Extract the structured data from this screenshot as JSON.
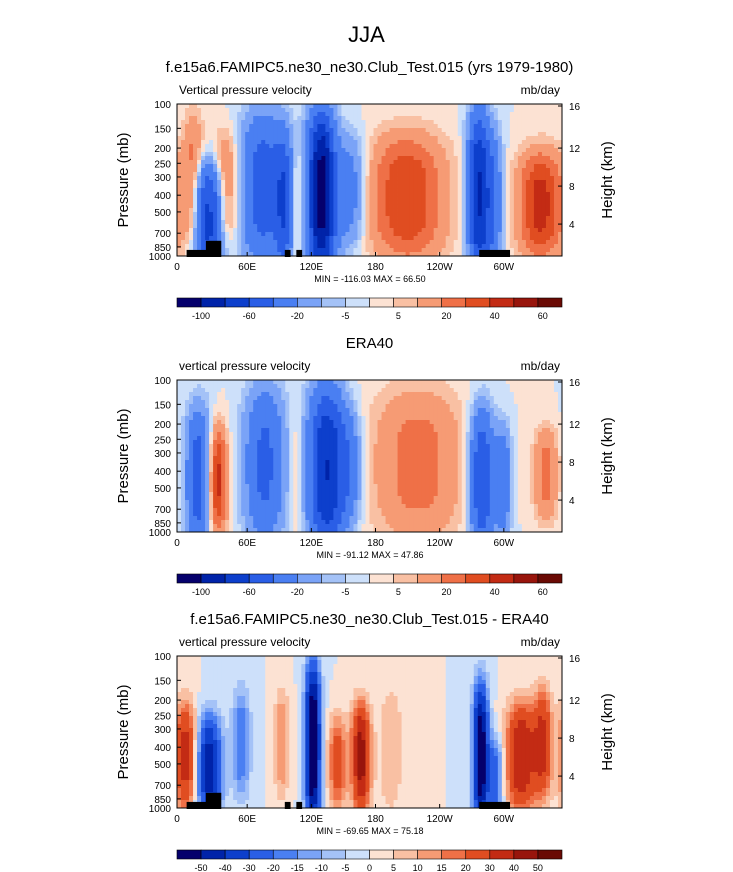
{
  "page": {
    "title": "JJA"
  },
  "scales": {
    "full": {
      "labels": [
        "-100",
        "-60",
        "-20",
        "-5",
        "5",
        "20",
        "40",
        "60"
      ],
      "colors": [
        "#05006c",
        "#0023a9",
        "#0d3fcc",
        "#2a5ee6",
        "#4a7ff2",
        "#7aa3f7",
        "#a4c2f7",
        "#cde0fa",
        "#fce2d3",
        "#f9c0a3",
        "#f69b74",
        "#ef7047",
        "#e04d21",
        "#c32b14",
        "#98150c",
        "#6a0a04"
      ]
    },
    "diff": {
      "labels": [
        "-50",
        "-40",
        "-30",
        "-20",
        "-15",
        "-10",
        "-5",
        "0",
        "5",
        "10",
        "15",
        "20",
        "30",
        "40",
        "50"
      ],
      "colors": [
        "#05006c",
        "#0023a9",
        "#0d3fcc",
        "#2a5ee6",
        "#4a7ff2",
        "#7aa3f7",
        "#a4c2f7",
        "#cde0fa",
        "#fce2d3",
        "#f9c0a3",
        "#f69b74",
        "#ef7047",
        "#e04d21",
        "#c32b14",
        "#98150c",
        "#6a0a04"
      ]
    }
  },
  "chart_data": [
    {
      "type": "heatmap",
      "title": "f.e15a6.FAMIPC5.ne30_ne30.Club_Test.015 (yrs 1979-1980)",
      "subtitle_left": "Vertical pressure velocity",
      "subtitle_right": "mb/day",
      "ylabel": "Pressure (mb)",
      "ylabel_right": "Height (km)",
      "x_ticks": [
        "0",
        "60E",
        "120E",
        "180",
        "120W",
        "60W"
      ],
      "y_ticks": [
        "100",
        "150",
        "200",
        "250",
        "300",
        "400",
        "500",
        "700",
        "850",
        "1000"
      ],
      "y_right_ticks": [
        "16",
        "12",
        "8",
        "4"
      ],
      "stats": "MIN = -116.03  MAX = 66.50",
      "scale": "full",
      "features": [
        {
          "lon": 30,
          "pmin": 300,
          "pmax": 1000,
          "w": 10,
          "amp": -70
        },
        {
          "lon": 15,
          "pmin": 150,
          "pmax": 700,
          "w": 7,
          "amp": 25
        },
        {
          "lon": 45,
          "pmin": 200,
          "pmax": 700,
          "w": 8,
          "amp": 30
        },
        {
          "lon": 80,
          "pmin": 150,
          "pmax": 850,
          "w": 14,
          "amp": -50
        },
        {
          "lon": 100,
          "pmin": 200,
          "pmax": 1000,
          "w": 6,
          "amp": -45
        },
        {
          "lon": 112,
          "pmin": 250,
          "pmax": 850,
          "w": 4,
          "amp": 15
        },
        {
          "lon": 135,
          "pmin": 150,
          "pmax": 1000,
          "w": 9,
          "amp": -110
        },
        {
          "lon": 162,
          "pmin": 200,
          "pmax": 700,
          "w": 10,
          "amp": -30
        },
        {
          "lon": 215,
          "pmin": 200,
          "pmax": 850,
          "w": 25,
          "amp": 40
        },
        {
          "lon": 282,
          "pmin": 150,
          "pmax": 1000,
          "w": 7,
          "amp": -80
        },
        {
          "lon": 296,
          "pmin": 200,
          "pmax": 1000,
          "w": 6,
          "amp": -35
        },
        {
          "lon": 340,
          "pmin": 250,
          "pmax": 850,
          "w": 15,
          "amp": 45
        }
      ]
    },
    {
      "type": "heatmap",
      "title": "ERA40",
      "subtitle_left": "vertical pressure velocity",
      "subtitle_right": "mb/day",
      "ylabel": "Pressure (mb)",
      "ylabel_right": "Height (km)",
      "x_ticks": [
        "0",
        "60E",
        "120E",
        "180",
        "120W",
        "60W"
      ],
      "y_ticks": [
        "100",
        "150",
        "200",
        "250",
        "300",
        "400",
        "500",
        "700",
        "850",
        "1000"
      ],
      "y_right_ticks": [
        "16",
        "12",
        "8",
        "4"
      ],
      "stats": "MIN = -91.12  MAX = 47.86",
      "scale": "full",
      "features": [
        {
          "lon": 20,
          "pmin": 200,
          "pmax": 1000,
          "w": 8,
          "amp": -50
        },
        {
          "lon": 38,
          "pmin": 250,
          "pmax": 850,
          "w": 6,
          "amp": 45
        },
        {
          "lon": 82,
          "pmin": 150,
          "pmax": 850,
          "w": 13,
          "amp": -45
        },
        {
          "lon": 112,
          "pmin": 200,
          "pmax": 850,
          "w": 5,
          "amp": 10
        },
        {
          "lon": 140,
          "pmin": 150,
          "pmax": 1000,
          "w": 12,
          "amp": -80
        },
        {
          "lon": 162,
          "pmin": 200,
          "pmax": 700,
          "w": 8,
          "amp": -25
        },
        {
          "lon": 225,
          "pmin": 150,
          "pmax": 850,
          "w": 30,
          "amp": 25
        },
        {
          "lon": 285,
          "pmin": 200,
          "pmax": 1000,
          "w": 8,
          "amp": -60
        },
        {
          "lon": 305,
          "pmin": 250,
          "pmax": 850,
          "w": 5,
          "amp": -35
        },
        {
          "lon": 345,
          "pmin": 250,
          "pmax": 700,
          "w": 8,
          "amp": 25
        }
      ]
    },
    {
      "type": "heatmap",
      "title": "f.e15a6.FAMIPC5.ne30_ne30.Club_Test.015 - ERA40",
      "subtitle_left": "vertical pressure velocity",
      "subtitle_right": "mb/day",
      "ylabel": "Pressure (mb)",
      "ylabel_right": "Height (km)",
      "x_ticks": [
        "0",
        "60E",
        "120E",
        "180",
        "120W",
        "60W"
      ],
      "y_ticks": [
        "100",
        "150",
        "200",
        "250",
        "300",
        "400",
        "500",
        "700",
        "850",
        "1000"
      ],
      "y_right_ticks": [
        "16",
        "12",
        "8",
        "4"
      ],
      "stats": "MIN = -69.65  MAX = 75.18",
      "scale": "diff",
      "features": [
        {
          "lon": 8,
          "pmin": 250,
          "pmax": 850,
          "w": 7,
          "amp": 35
        },
        {
          "lon": 30,
          "pmin": 300,
          "pmax": 1000,
          "w": 8,
          "amp": -45
        },
        {
          "lon": 60,
          "pmin": 200,
          "pmax": 700,
          "w": 6,
          "amp": -20
        },
        {
          "lon": 98,
          "pmin": 200,
          "pmax": 700,
          "w": 5,
          "amp": 15
        },
        {
          "lon": 127,
          "pmin": 150,
          "pmax": 1000,
          "w": 5,
          "amp": -65
        },
        {
          "lon": 150,
          "pmin": 300,
          "pmax": 850,
          "w": 6,
          "amp": 25
        },
        {
          "lon": 172,
          "pmin": 250,
          "pmax": 850,
          "w": 6,
          "amp": 45
        },
        {
          "lon": 200,
          "pmin": 200,
          "pmax": 850,
          "w": 8,
          "amp": 10
        },
        {
          "lon": 284,
          "pmin": 200,
          "pmax": 1000,
          "w": 5,
          "amp": -60
        },
        {
          "lon": 298,
          "pmin": 400,
          "pmax": 1000,
          "w": 5,
          "amp": -25
        },
        {
          "lon": 322,
          "pmin": 250,
          "pmax": 850,
          "w": 10,
          "amp": 40
        },
        {
          "lon": 342,
          "pmin": 200,
          "pmax": 700,
          "w": 6,
          "amp": 30
        }
      ]
    }
  ]
}
